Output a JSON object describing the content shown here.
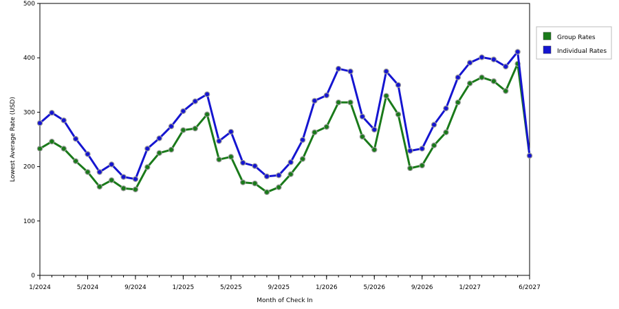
{
  "chart_data": {
    "type": "line",
    "xlabel": "Month of Check In",
    "ylabel": "Lowest Average Rate (USD)",
    "ylim": [
      0,
      500
    ],
    "yticks": [
      0,
      100,
      200,
      300,
      400,
      500
    ],
    "grid": "horizontal dashed",
    "legend_position": "top-right",
    "x_tick_labels": [
      "1/2024",
      "5/2024",
      "9/2024",
      "1/2025",
      "5/2025",
      "9/2025",
      "1/2026",
      "5/2026",
      "9/2026",
      "1/2027",
      "6/2027"
    ],
    "x_tick_indices": [
      0,
      4,
      8,
      12,
      16,
      20,
      24,
      28,
      32,
      36,
      41
    ],
    "x": [
      "1/2024",
      "2/2024",
      "3/2024",
      "4/2024",
      "5/2024",
      "6/2024",
      "7/2024",
      "8/2024",
      "9/2024",
      "10/2024",
      "11/2024",
      "12/2024",
      "1/2025",
      "2/2025",
      "3/2025",
      "4/2025",
      "5/2025",
      "6/2025",
      "7/2025",
      "8/2025",
      "9/2025",
      "10/2025",
      "11/2025",
      "12/2025",
      "1/2026",
      "2/2026",
      "3/2026",
      "4/2026",
      "5/2026",
      "6/2026",
      "7/2026",
      "8/2026",
      "9/2026",
      "10/2026",
      "11/2026",
      "12/2026",
      "1/2027",
      "2/2027",
      "3/2027",
      "4/2027",
      "5/2027",
      "6/2027"
    ],
    "series": [
      {
        "name": "Group Rates",
        "color": "#1a7a1a",
        "values": [
          233,
          246,
          233,
          210,
          190,
          163,
          175,
          160,
          158,
          199,
          225,
          231,
          267,
          270,
          296,
          213,
          218,
          171,
          169,
          153,
          162,
          186,
          214,
          263,
          273,
          318,
          318,
          255,
          231,
          330,
          296,
          197,
          202,
          239,
          263,
          318,
          353,
          364,
          357,
          339,
          389,
          220
        ]
      },
      {
        "name": "Individual Rates",
        "color": "#1515d0",
        "values": [
          280,
          299,
          285,
          251,
          223,
          190,
          204,
          181,
          177,
          233,
          252,
          274,
          302,
          320,
          333,
          247,
          264,
          207,
          201,
          182,
          184,
          208,
          249,
          321,
          331,
          380,
          375,
          292,
          268,
          375,
          350,
          229,
          233,
          277,
          307,
          364,
          391,
          401,
          397,
          384,
          411,
          220
        ]
      }
    ]
  }
}
